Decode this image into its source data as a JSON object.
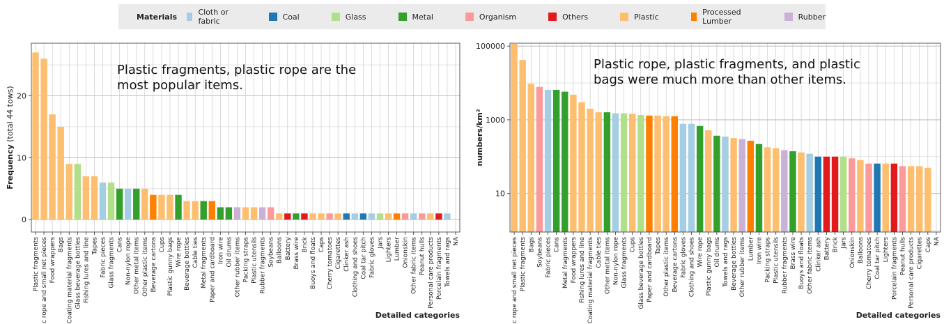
{
  "legend": {
    "title": "Materials",
    "entries": [
      {
        "name": "Cloth or fabric",
        "color": "#a6cee3"
      },
      {
        "name": "Coal",
        "color": "#1f78b4"
      },
      {
        "name": "Glass",
        "color": "#b2df8a"
      },
      {
        "name": "Metal",
        "color": "#33a02c"
      },
      {
        "name": "Organism",
        "color": "#fb9a99"
      },
      {
        "name": "Others",
        "color": "#e31a1c"
      },
      {
        "name": "Plastic",
        "color": "#fdbf6f"
      },
      {
        "name": "Processed Lumber",
        "color": "#ff7f00"
      },
      {
        "name": "Rubber",
        "color": "#cab2d6"
      }
    ]
  },
  "chart_data": [
    {
      "type": "bar",
      "ylabel_main": "Frequency",
      "ylabel_sub": "(total 44 tows)",
      "xlabel": "Detailed categories",
      "annotation": [
        "Plastic fragments, plastic rope are the",
        "most popular items."
      ],
      "ylim": [
        -2,
        28.5
      ],
      "yticks": [
        0,
        10,
        20
      ],
      "scale": "linear",
      "categories": [
        "Plastic fragments",
        "Plastic rope and small net pieces",
        "Food wrappers",
        "Bags",
        "Coating material fragments",
        "Glass beverage bottles",
        "Fishing lures and line",
        "Tapes",
        "Fabric pieces",
        "Glass fragments",
        "Cans",
        "Non-nylon rope",
        "Other metal items",
        "Other plastic items",
        "Beverage cartons",
        "Cups",
        "Plastic gunny bags",
        "Wire rope",
        "Beverage bottles",
        "Cable ties",
        "Metal fragments",
        "Paper and cardboard",
        "Iron wire",
        "Oil drums",
        "Other rubber items",
        "Packing straps",
        "Plastic utensils",
        "Rubber fragments",
        "Soybeans",
        "Balloons",
        "Battery",
        "Brass wire",
        "Brick",
        "Buoys and floats",
        "Caps",
        "Cherry tomatoes",
        "Cigarettes",
        "Clinker ash",
        "Clothing and shoes",
        "Coal tar pitch",
        "Fabric gloves",
        "Jars",
        "Lighters",
        "Lumber",
        "Onionskin",
        "Other fabric items",
        "Peanut hulls",
        "Personal care products",
        "Porcelain fragments",
        "Towels and rags",
        "NA"
      ],
      "values": [
        27,
        26,
        17,
        15,
        9,
        9,
        7,
        7,
        6,
        6,
        5,
        5,
        5,
        5,
        4,
        4,
        4,
        4,
        3,
        3,
        3,
        3,
        2,
        2,
        2,
        2,
        2,
        2,
        2,
        1,
        1,
        1,
        1,
        1,
        1,
        1,
        1,
        1,
        1,
        1,
        1,
        1,
        1,
        1,
        1,
        1,
        1,
        1,
        1,
        1,
        null
      ],
      "materials": [
        "Plastic",
        "Plastic",
        "Plastic",
        "Plastic",
        "Plastic",
        "Glass",
        "Plastic",
        "Plastic",
        "Cloth or fabric",
        "Glass",
        "Metal",
        "Cloth or fabric",
        "Metal",
        "Plastic",
        "Processed Lumber",
        "Plastic",
        "Plastic",
        "Metal",
        "Plastic",
        "Plastic",
        "Metal",
        "Processed Lumber",
        "Metal",
        "Metal",
        "Rubber",
        "Plastic",
        "Plastic",
        "Rubber",
        "Organism",
        "Plastic",
        "Others",
        "Metal",
        "Others",
        "Plastic",
        "Plastic",
        "Organism",
        "Plastic",
        "Coal",
        "Cloth or fabric",
        "Coal",
        "Cloth or fabric",
        "Glass",
        "Plastic",
        "Processed Lumber",
        "Organism",
        "Cloth or fabric",
        "Organism",
        "Plastic",
        "Others",
        "Cloth or fabric",
        ""
      ],
      "grid": true
    },
    {
      "type": "bar",
      "ylabel_main": "numbers/km²",
      "xlabel": "Detailed categories",
      "annotation": [
        "Plastic rope, plastic fragments, and plastic",
        "bags were much more than other items."
      ],
      "scale": "log10",
      "ylim": [
        0.9,
        120000
      ],
      "yticks": [
        10,
        1000,
        100000
      ],
      "ytick_labels": [
        "10",
        "1000",
        "100000"
      ],
      "categories": [
        "Plastic rope and small net pieces",
        "Plastic fragments",
        "Bags",
        "Soybeans",
        "Fabric pieces",
        "Cans",
        "Metal fragments",
        "Food wrappers",
        "Fishing lures and line",
        "Coating material fragments",
        "Cable ties",
        "Other metal items",
        "Non-nylon rope",
        "Glass fragments",
        "Cups",
        "Glass beverage bottles",
        "Paper and cardboard",
        "Tapes",
        "Other plastic items",
        "Beverage cartons",
        "Fabric gloves",
        "Clothing and shoes",
        "Wire rope",
        "Plastic gunny bags",
        "Oil drums",
        "Towels and rags",
        "Beverage bottles",
        "Other rubber items",
        "Lumber",
        "Iron wire",
        "Packing straps",
        "Plastic utensils",
        "Rubber fragments",
        "Brass wire",
        "Buoys and floats",
        "Other fabric items",
        "Clinker ash",
        "Battery",
        "Brick",
        "Jars",
        "Onionskin",
        "Balloons",
        "Cherry tomatoes",
        "Coal tar pitch",
        "Lighters",
        "Porcelain fragments",
        "Peanut hulls",
        "Personal care products",
        "Cigarettes",
        "Caps",
        "NA"
      ],
      "values": [
        115000,
        42000,
        9500,
        7800,
        6500,
        6500,
        5800,
        4800,
        3000,
        2000,
        1600,
        1600,
        1500,
        1500,
        1450,
        1350,
        1300,
        1300,
        1250,
        1250,
        780,
        780,
        680,
        520,
        370,
        350,
        320,
        300,
        270,
        220,
        180,
        170,
        150,
        140,
        130,
        120,
        100,
        100,
        100,
        100,
        90,
        80,
        65,
        65,
        65,
        65,
        55,
        55,
        55,
        50,
        null
      ],
      "materials": [
        "Plastic",
        "Plastic",
        "Plastic",
        "Organism",
        "Cloth or fabric",
        "Metal",
        "Metal",
        "Plastic",
        "Plastic",
        "Plastic",
        "Plastic",
        "Metal",
        "Cloth or fabric",
        "Glass",
        "Plastic",
        "Glass",
        "Processed Lumber",
        "Plastic",
        "Plastic",
        "Processed Lumber",
        "Cloth or fabric",
        "Cloth or fabric",
        "Metal",
        "Plastic",
        "Metal",
        "Cloth or fabric",
        "Plastic",
        "Rubber",
        "Processed Lumber",
        "Metal",
        "Plastic",
        "Plastic",
        "Rubber",
        "Metal",
        "Plastic",
        "Cloth or fabric",
        "Coal",
        "Others",
        "Others",
        "Glass",
        "Organism",
        "Plastic",
        "Organism",
        "Coal",
        "Plastic",
        "Others",
        "Organism",
        "Plastic",
        "Plastic",
        "Plastic",
        ""
      ],
      "grid": true
    }
  ]
}
